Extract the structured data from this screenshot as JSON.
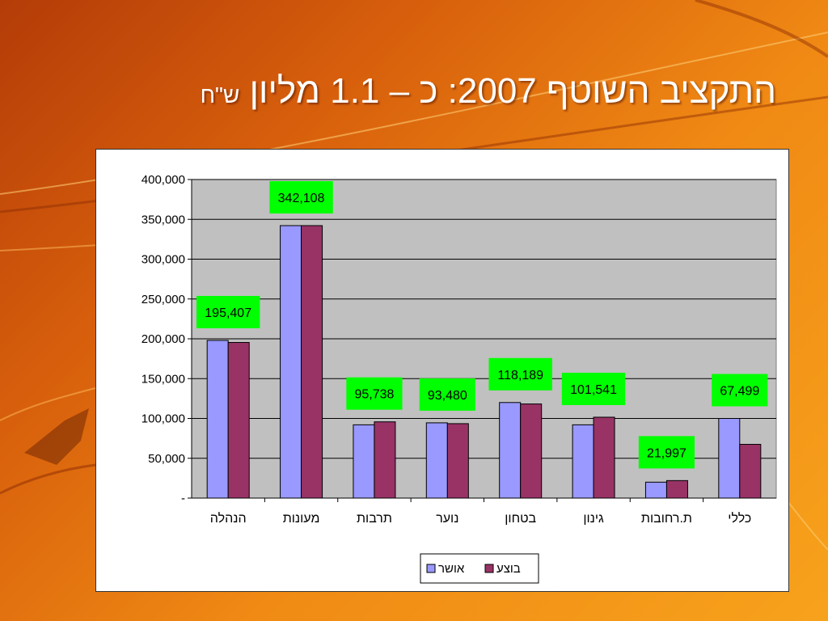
{
  "slide": {
    "title_main": "התקציב השוטף 2007: כ – 1.1 מליון",
    "title_unit": "ש\"ח"
  },
  "colors": {
    "approved": "#9999ff",
    "executed": "#993366",
    "plot_bg": "#c0c0c0",
    "label_bg": "#00ff00"
  },
  "chart_data": {
    "type": "bar",
    "categories": [
      "הנהלה",
      "מעונות",
      "תרבות",
      "נוער",
      "בטחון",
      "גינון",
      "ת.רחובות",
      "כללי"
    ],
    "series": [
      {
        "name": "אושר",
        "values": [
          198000,
          342108,
          92000,
          94500,
          120000,
          92000,
          20000,
          100000
        ]
      },
      {
        "name": "בוצע",
        "values": [
          195407,
          342108,
          95738,
          93480,
          118189,
          101541,
          21997,
          67499
        ]
      }
    ],
    "data_labels": [
      "195,407",
      "342,108",
      "95,738",
      "93,480",
      "118,189",
      "101,541",
      "21,997",
      "67,499"
    ],
    "ylim": [
      0,
      400000
    ],
    "yticks": [
      "-",
      "50,000",
      "100,000",
      "150,000",
      "200,000",
      "250,000",
      "300,000",
      "350,000",
      "400,000"
    ],
    "grid": true,
    "legend_position": "bottom"
  }
}
